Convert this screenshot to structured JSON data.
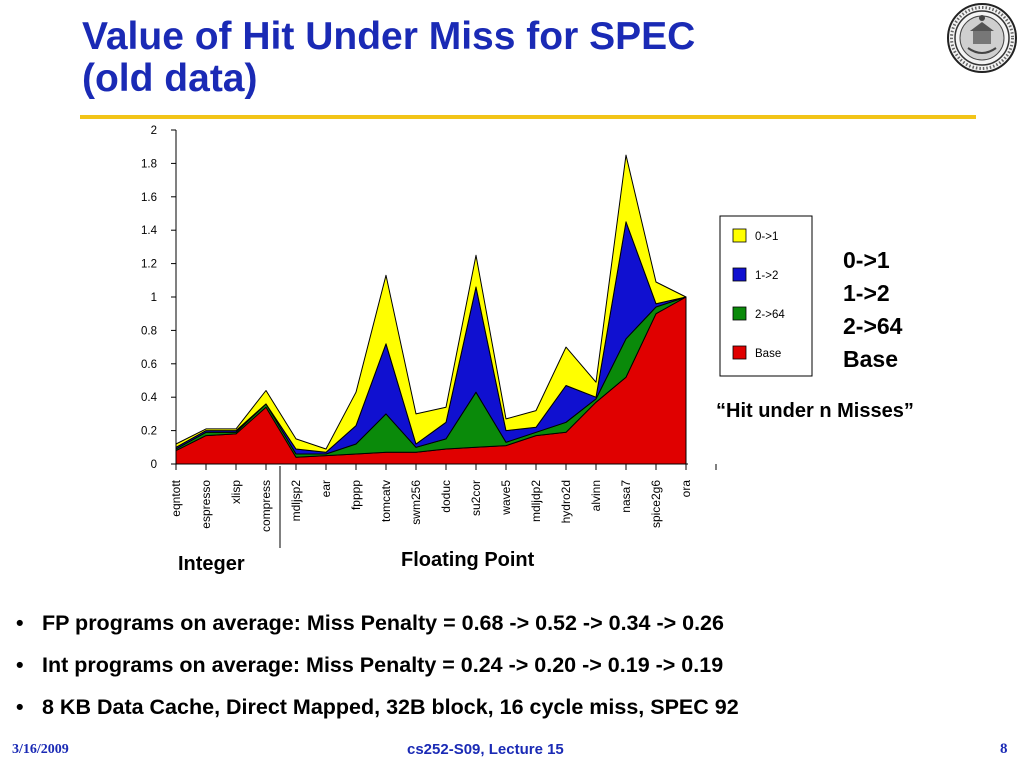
{
  "slide": {
    "title_line1": "Value of Hit Under Miss for SPEC",
    "title_line2": "(old data)",
    "bullets": [
      "FP programs on average: Miss Penalty = 0.68 -> 0.52 -> 0.34 -> 0.26",
      "Int programs on average: Miss Penalty = 0.24 -> 0.20 -> 0.19 -> 0.19",
      "8 KB Data Cache, Direct Mapped, 32B block, 16 cycle miss, SPEC 92"
    ],
    "bullet_glyph": "•",
    "footer": {
      "date": "3/16/2009",
      "course": "cs252-S09, Lecture 15",
      "page": "8"
    },
    "colors": {
      "title": "#1a2ab5",
      "rule": "#f2c418"
    },
    "seal_icon": "university-seal-icon"
  },
  "chart_data": {
    "type": "area",
    "stacked": true,
    "categories": [
      "eqntott",
      "espresso",
      "xlisp",
      "compress",
      "mdljsp2",
      "ear",
      "fpppp",
      "tomcatv",
      "swm256",
      "doduc",
      "su2cor",
      "wave5",
      "mdljdp2",
      "hydro2d",
      "alvinn",
      "nasa7",
      "spice2g6",
      "ora"
    ],
    "ylim": [
      0,
      2
    ],
    "yticks": [
      0,
      0.2,
      0.4,
      0.6,
      0.8,
      1,
      1.2,
      1.4,
      1.6,
      1.8,
      2
    ],
    "ytick_labels": [
      "0",
      "0.2",
      "0.4",
      "0.6",
      "0.8",
      "1",
      "1.2",
      "1.4",
      "1.6",
      "1.8",
      "2"
    ],
    "series": [
      {
        "name": "Base",
        "color": "#e00000",
        "values": [
          0.08,
          0.17,
          0.18,
          0.34,
          0.04,
          0.05,
          0.06,
          0.07,
          0.07,
          0.09,
          0.1,
          0.11,
          0.17,
          0.19,
          0.37,
          0.52,
          0.9,
          1.0
        ]
      },
      {
        "name": "2->64",
        "color": "#0a8a0a",
        "values": [
          0.01,
          0.02,
          0.01,
          0.02,
          0.02,
          0.01,
          0.06,
          0.23,
          0.03,
          0.06,
          0.33,
          0.02,
          0.02,
          0.06,
          0.02,
          0.23,
          0.04,
          0.0
        ]
      },
      {
        "name": "1->2",
        "color": "#1010d0",
        "values": [
          0.01,
          0.01,
          0.01,
          0.0,
          0.03,
          0.01,
          0.11,
          0.42,
          0.02,
          0.1,
          0.63,
          0.07,
          0.03,
          0.22,
          0.01,
          0.7,
          0.02,
          0.0
        ]
      },
      {
        "name": "0->1",
        "color": "#ffff00",
        "values": [
          0.02,
          0.01,
          0.01,
          0.08,
          0.06,
          0.02,
          0.2,
          0.41,
          0.18,
          0.09,
          0.19,
          0.07,
          0.1,
          0.23,
          0.09,
          0.4,
          0.13,
          0.0
        ]
      }
    ],
    "legend": {
      "position": "right",
      "entries": [
        "0->1",
        "1->2",
        "2->64",
        "Base"
      ]
    },
    "group_labels": [
      "Integer",
      "Floating Point"
    ],
    "annotation_lines": [
      "0->1",
      "1->2",
      "2->64",
      "Base"
    ],
    "annotation_caption": "“Hit under n Misses”",
    "grid": false
  }
}
